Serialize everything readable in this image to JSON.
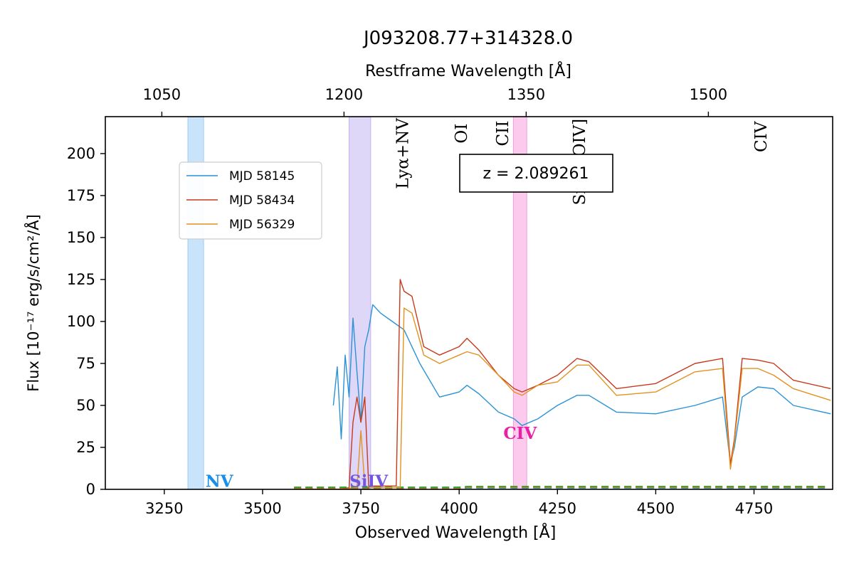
{
  "chart_data": {
    "type": "line",
    "title": "J093208.77+314328.0",
    "xlabel": "Observed Wavelength [Å]",
    "top_xlabel": "Restframe Wavelength [Å]",
    "ylabel": "Flux [10⁻¹⁷ erg/s/cm²/Å]",
    "xlim": [
      3100,
      4950
    ],
    "ylim": [
      0,
      222
    ],
    "x_ticks": [
      3250,
      3500,
      3750,
      4000,
      4250,
      4500,
      4750
    ],
    "y_ticks": [
      0,
      25,
      50,
      75,
      100,
      125,
      150,
      175,
      200
    ],
    "top_ticks": [
      1050,
      1200,
      1350,
      1500
    ],
    "redshift_label": "z = 2.089261",
    "legend_position": "upper-left",
    "line_ids": [
      {
        "label": "Lyα+NV",
        "x": 3870,
        "y": 200
      },
      {
        "label": "OI",
        "x": 4020,
        "y": 212
      },
      {
        "label": "CII",
        "x": 4125,
        "y": 212
      },
      {
        "label": "SiIV+OIV]",
        "x": 4320,
        "y": 195
      },
      {
        "label": "CIV",
        "x": 4782,
        "y": 210
      }
    ],
    "absorption_bands": [
      {
        "label": "NV",
        "x_start": 3310,
        "x_end": 3350,
        "color": "#87c4f5",
        "label_color": "#1a8fe8",
        "label_x": 3390
      },
      {
        "label": "SiIV",
        "x_start": 3720,
        "x_end": 3775,
        "color": "#b8a6f0",
        "label_color": "#7255e0",
        "label_x": 3770
      },
      {
        "label": "CIV",
        "x_start": 4138,
        "x_end": 4172,
        "color": "#f78ad6",
        "label_color": "#ea1fa6",
        "label_x": 4155
      }
    ],
    "series": [
      {
        "name": "MJD 58145",
        "color": "#2a92d6",
        "x": [
          3680,
          3690,
          3700,
          3710,
          3720,
          3730,
          3740,
          3750,
          3760,
          3770,
          3780,
          3800,
          3830,
          3860,
          3900,
          3950,
          4000,
          4020,
          4050,
          4100,
          4140,
          4160,
          4200,
          4250,
          4300,
          4330,
          4400,
          4500,
          4600,
          4670,
          4690,
          4700,
          4720,
          4760,
          4800,
          4850,
          4945
        ],
        "y": [
          50,
          73,
          30,
          80,
          55,
          102,
          70,
          40,
          85,
          95,
          110,
          105,
          100,
          95,
          75,
          55,
          58,
          62,
          57,
          46,
          42,
          38,
          42,
          50,
          56,
          56,
          46,
          45,
          50,
          55,
          15,
          25,
          55,
          61,
          60,
          50,
          45
        ]
      },
      {
        "name": "MJD 58434",
        "color": "#c63a1c",
        "x": [
          3580,
          3700,
          3720,
          3730,
          3740,
          3750,
          3760,
          3770,
          3840,
          3850,
          3860,
          3880,
          3910,
          3950,
          4000,
          4020,
          4050,
          4100,
          4140,
          4160,
          4200,
          4250,
          4300,
          4330,
          4400,
          4500,
          4600,
          4670,
          4690,
          4700,
          4720,
          4760,
          4800,
          4850,
          4945
        ],
        "y": [
          0,
          0,
          1,
          40,
          55,
          40,
          55,
          2,
          2,
          125,
          118,
          115,
          85,
          80,
          85,
          90,
          83,
          68,
          60,
          58,
          62,
          68,
          78,
          76,
          60,
          63,
          75,
          78,
          15,
          30,
          78,
          77,
          75,
          65,
          60
        ]
      },
      {
        "name": "MJD 56329",
        "color": "#e2921f",
        "x": [
          3580,
          3700,
          3740,
          3750,
          3760,
          3780,
          3790,
          3850,
          3860,
          3880,
          3910,
          3950,
          4000,
          4020,
          4050,
          4100,
          4140,
          4160,
          4200,
          4250,
          4300,
          4330,
          4400,
          4500,
          4600,
          4670,
          4690,
          4700,
          4720,
          4760,
          4800,
          4850,
          4945
        ],
        "y": [
          0,
          0,
          1,
          35,
          2,
          1,
          1,
          1,
          108,
          105,
          80,
          75,
          80,
          82,
          80,
          68,
          58,
          56,
          62,
          64,
          74,
          74,
          56,
          58,
          70,
          72,
          12,
          28,
          72,
          72,
          68,
          60,
          53
        ]
      }
    ]
  }
}
